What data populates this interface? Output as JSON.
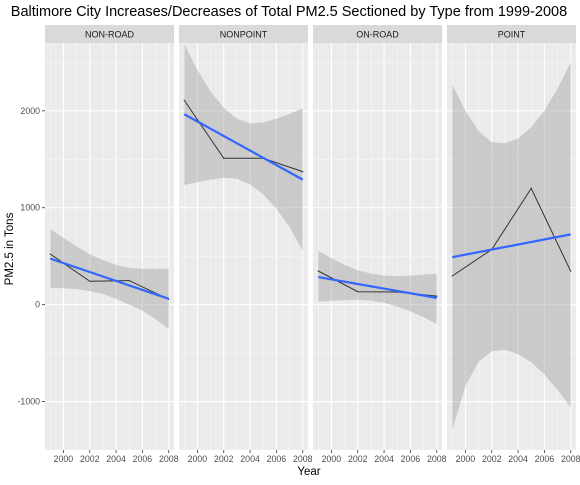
{
  "chart_data": {
    "type": "line",
    "title": "Baltimore City Increases/Decreases of Total PM2.5 Sectioned by Type from 1999-2008",
    "xlabel": "Year",
    "ylabel": "PM2.5 in Tons",
    "xlim": [
      1998.6,
      2008.4
    ],
    "ylim": [
      -1500,
      2700
    ],
    "x_ticks": [
      2000,
      2002,
      2004,
      2006,
      2008
    ],
    "x_tick_labels": [
      "2000",
      "2002",
      "2004",
      "2006",
      "2008"
    ],
    "y_ticks": [
      -1000,
      0,
      1000,
      2000
    ],
    "y_tick_labels": [
      "-1000",
      "0",
      "1000",
      "2000"
    ],
    "grid": true,
    "facets": [
      "NON-ROAD",
      "NONPOINT",
      "ON-ROAD",
      "POINT"
    ],
    "panels": [
      {
        "name": "NON-ROAD",
        "x": [
          1999,
          2002,
          2005,
          2008
        ],
        "values": [
          522,
          241,
          248,
          55
        ],
        "fit": {
          "x": [
            1999,
            2008
          ],
          "values": [
            475,
            60
          ]
        },
        "band": {
          "x": [
            1999,
            2000,
            2001,
            2002,
            2003,
            2004,
            2005,
            2006,
            2007,
            2008
          ],
          "upper": [
            780,
            690,
            600,
            520,
            460,
            410,
            380,
            370,
            370,
            370
          ],
          "lower": [
            175,
            170,
            160,
            140,
            110,
            60,
            0,
            -60,
            -150,
            -250
          ]
        }
      },
      {
        "name": "NONPOINT",
        "x": [
          1999,
          2002,
          2005,
          2008
        ],
        "values": [
          2108,
          1510,
          1510,
          1373
        ],
        "fit": {
          "x": [
            1999,
            2008
          ],
          "values": [
            1965,
            1290
          ]
        },
        "band": {
          "x": [
            1999,
            2000,
            2001,
            2002,
            2003,
            2004,
            2005,
            2006,
            2007,
            2008
          ],
          "upper": [
            2690,
            2420,
            2200,
            2030,
            1920,
            1870,
            1880,
            1920,
            1970,
            2025
          ],
          "lower": [
            1235,
            1265,
            1290,
            1310,
            1300,
            1240,
            1140,
            990,
            800,
            555
          ]
        }
      },
      {
        "name": "ON-ROAD",
        "x": [
          1999,
          2002,
          2005,
          2008
        ],
        "values": [
          347,
          134,
          130,
          88
        ],
        "fit": {
          "x": [
            1999,
            2008
          ],
          "values": [
            285,
            70
          ]
        },
        "band": {
          "x": [
            1999,
            2000,
            2001,
            2002,
            2003,
            2004,
            2005,
            2006,
            2007,
            2008
          ],
          "upper": [
            555,
            480,
            410,
            355,
            320,
            300,
            295,
            300,
            310,
            320
          ],
          "lower": [
            30,
            40,
            45,
            50,
            40,
            20,
            -20,
            -70,
            -130,
            -200
          ]
        }
      },
      {
        "name": "POINT",
        "x": [
          1999,
          2002,
          2005,
          2008
        ],
        "values": [
          296,
          570,
          1200,
          345
        ],
        "fit": {
          "x": [
            1999,
            2008
          ],
          "values": [
            490,
            725
          ]
        },
        "band": {
          "x": [
            1999,
            2000,
            2001,
            2002,
            2003,
            2004,
            2005,
            2006,
            2007,
            2008
          ],
          "upper": [
            2270,
            2000,
            1790,
            1675,
            1665,
            1715,
            1830,
            2000,
            2230,
            2500
          ],
          "lower": [
            -1295,
            -840,
            -590,
            -480,
            -465,
            -510,
            -595,
            -720,
            -880,
            -1060
          ]
        }
      }
    ],
    "colors": {
      "panel_background": "#ebebeb",
      "strip_background": "#d9d9d9",
      "grid_major": "#ffffff",
      "band_fill": "#999999",
      "data_line": "#333333",
      "fit_line": "#3366ff",
      "text": "#000000",
      "tick_text": "#4d4d4d"
    }
  }
}
